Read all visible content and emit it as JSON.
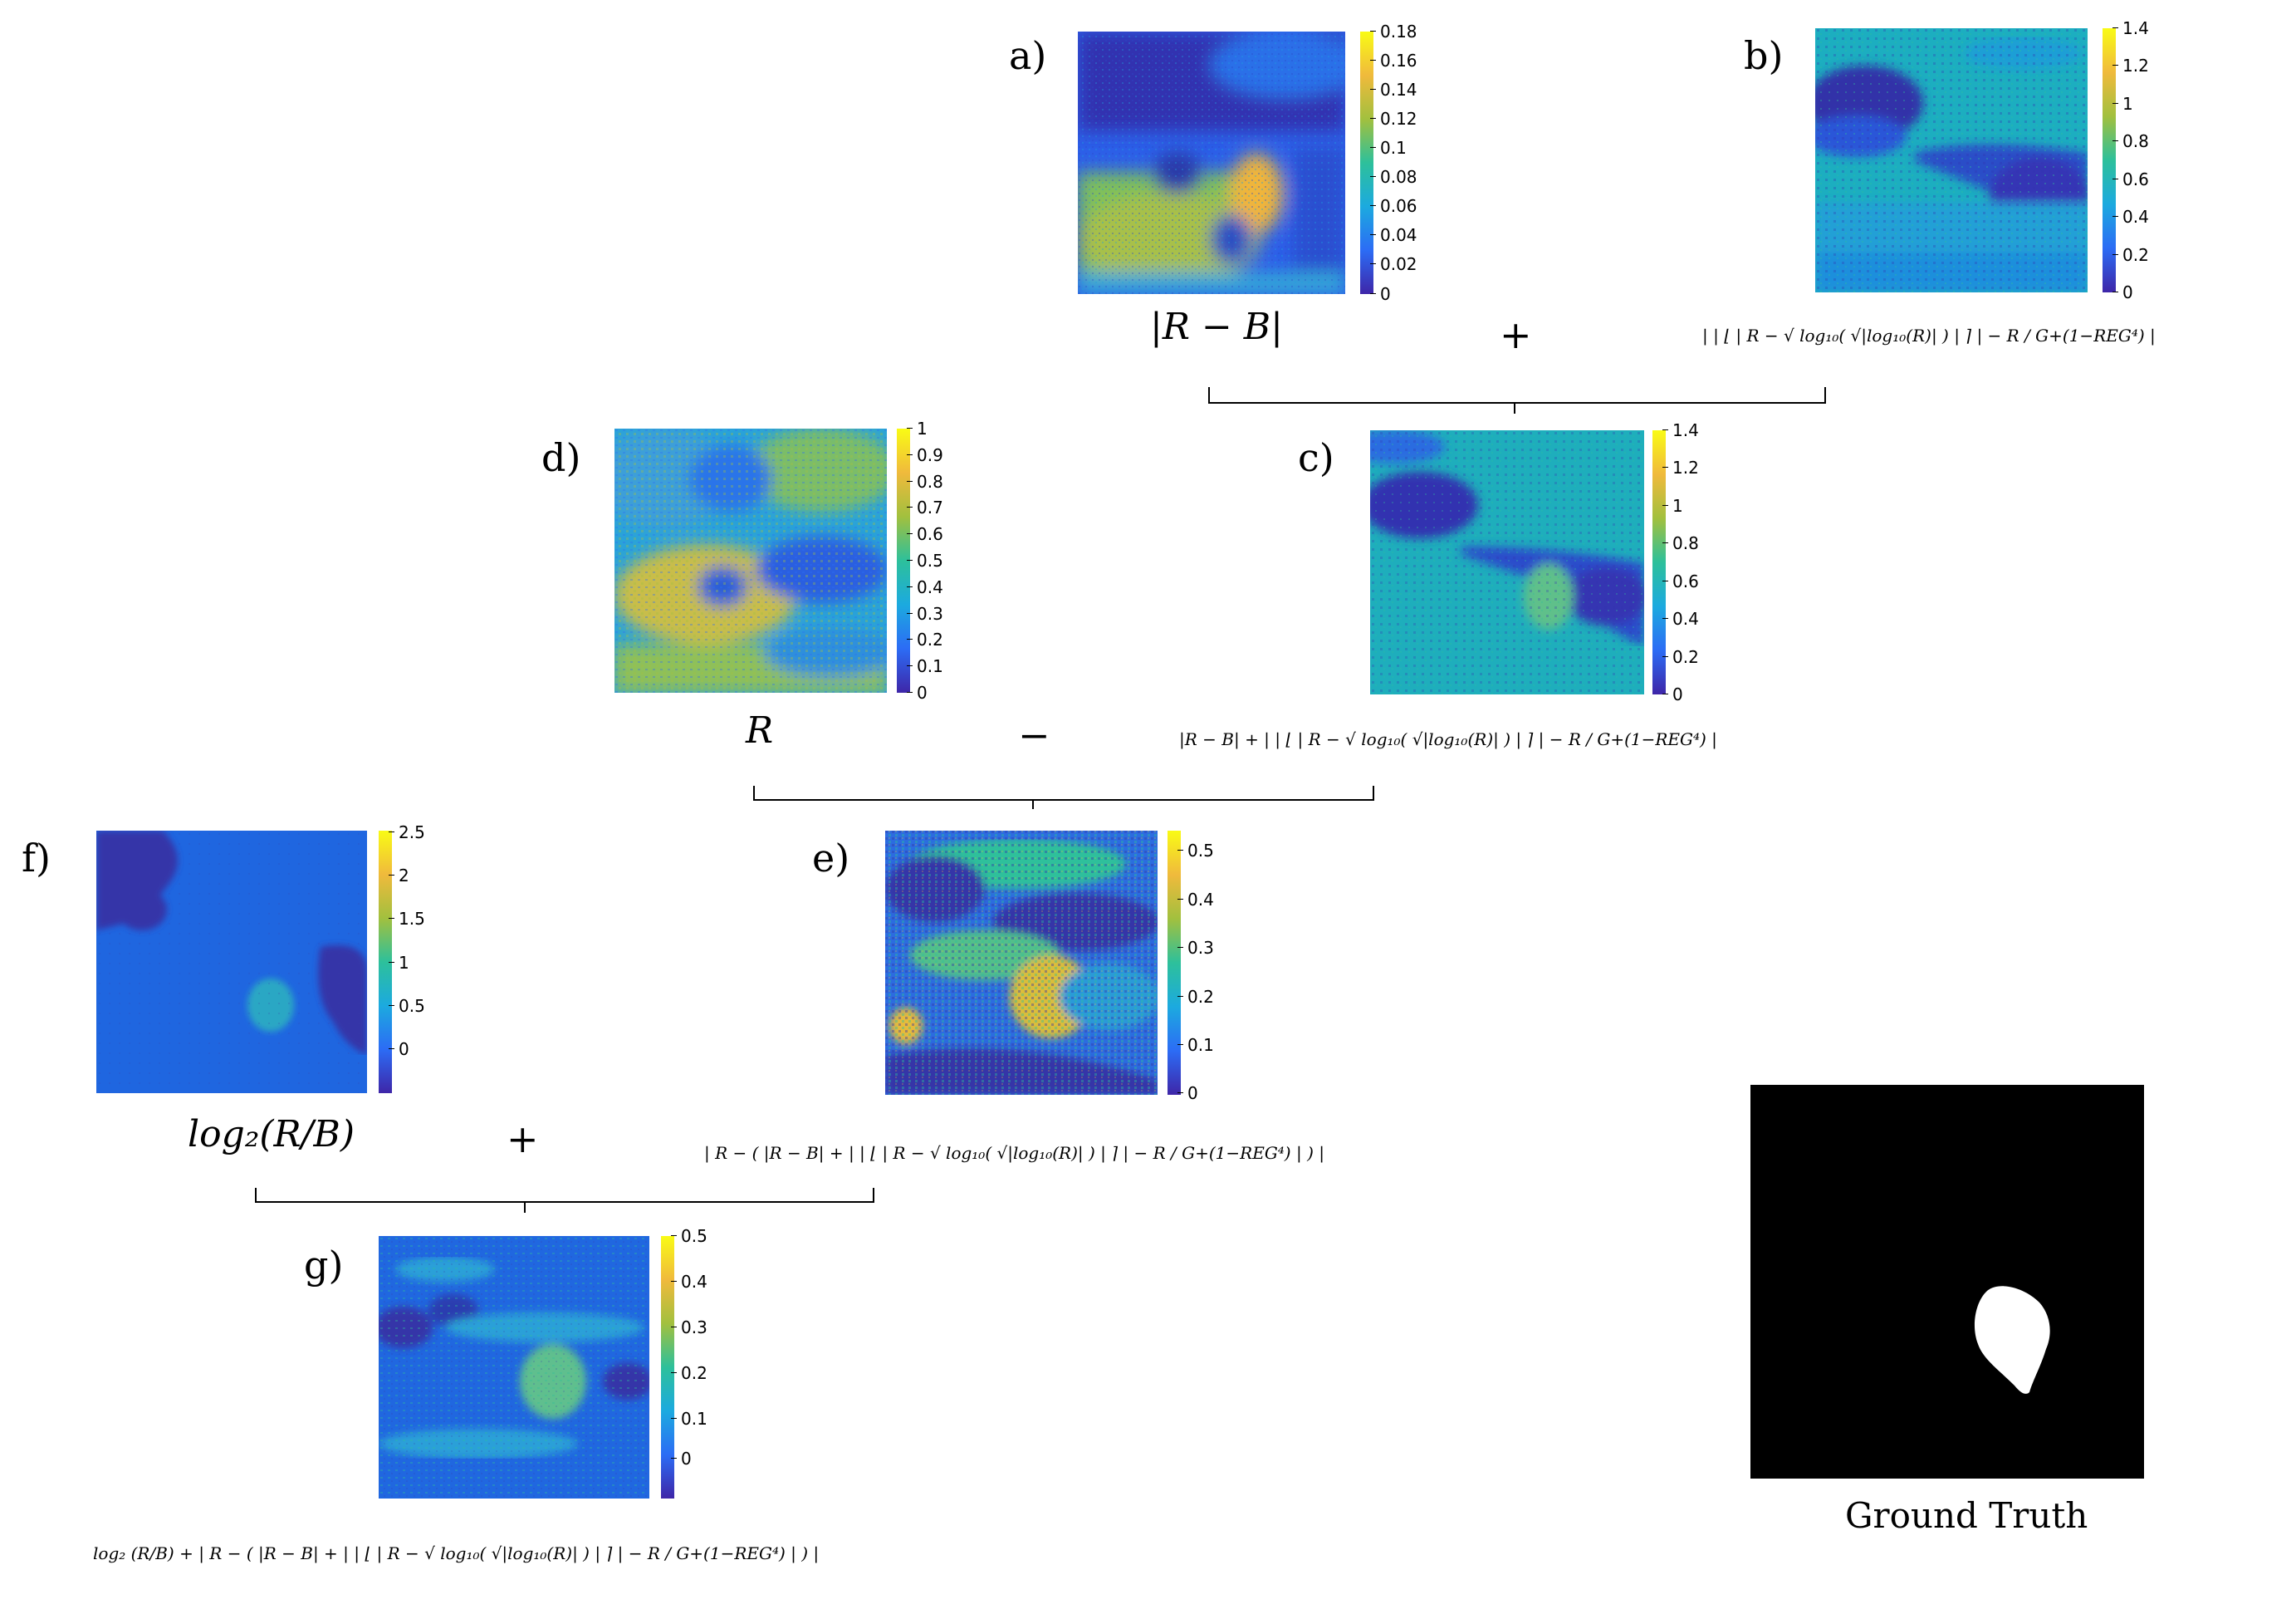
{
  "panels": {
    "a": {
      "label": "a)",
      "ticks": [
        "0.18",
        "0.16",
        "0.14",
        "0.12",
        "0.1",
        "0.08",
        "0.06",
        "0.04",
        "0.02",
        "0"
      ],
      "formula": "|R − B|"
    },
    "b": {
      "label": "b)",
      "ticks": [
        "1.4",
        "1.2",
        "1",
        "0.8",
        "0.6",
        "0.4",
        "0.2",
        "0"
      ],
      "formula": "| | ⌊ | R − √ log₁₀( √|log₁₀(R)| ) | ⌉ | − R / G+(1−REG⁴) |"
    },
    "c": {
      "label": "c)",
      "ticks": [
        "1.4",
        "1.2",
        "1",
        "0.8",
        "0.6",
        "0.4",
        "0.2",
        "0"
      ],
      "formula": "|R − B| + | | ⌊ | R − √ log₁₀( √|log₁₀(R)| ) | ⌉ | − R / G+(1−REG⁴) |"
    },
    "d": {
      "label": "d)",
      "ticks": [
        "1",
        "0.9",
        "0.8",
        "0.7",
        "0.6",
        "0.5",
        "0.4",
        "0.3",
        "0.2",
        "0.1",
        "0"
      ],
      "formula": "R"
    },
    "e": {
      "label": "e)",
      "ticks": [
        "0.5",
        "0.4",
        "0.3",
        "0.2",
        "0.1",
        "0"
      ],
      "formula": "| R − ( |R − B| + | | ⌊ | R − √ log₁₀( √|log₁₀(R)| ) | ⌉ | − R / G+(1−REG⁴) | ) |"
    },
    "f": {
      "label": "f)",
      "ticks": [
        "2.5",
        "2",
        "1.5",
        "1",
        "0.5",
        "0"
      ],
      "formula": "log₂(R/B)"
    },
    "g": {
      "label": "g)",
      "ticks": [
        "0.5",
        "0.4",
        "0.3",
        "0.2",
        "0.1",
        "0"
      ],
      "formula": "log₂ (R/B) + | R − ( |R − B| + | | ⌊ | R − √ log₁₀( √|log₁₀(R)| ) | ⌉ | − R / G+(1−REG⁴) | ) |"
    }
  },
  "operators": {
    "plus_ab": "+",
    "minus_dc": "−",
    "plus_fe": "+"
  },
  "ground_truth": {
    "caption": "Ground Truth"
  },
  "colormap": [
    "#3e26a8",
    "#2c6cf5",
    "#1caadf",
    "#2dc09b",
    "#a2c03e",
    "#f0ba3c",
    "#f9fb15"
  ]
}
